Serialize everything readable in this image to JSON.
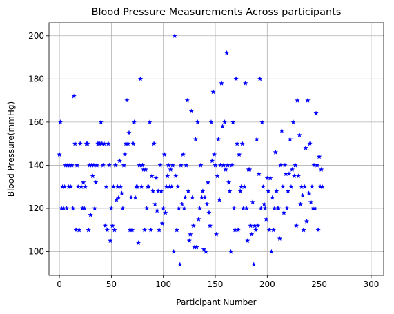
{
  "chart_data": {
    "type": "scatter",
    "title": "Blood Pressure Measurements Across participants",
    "xlabel": "Participant Number",
    "ylabel": "Blood  Pressure(mmHg)",
    "xlim": [
      -10,
      312
    ],
    "ylim": [
      89,
      206
    ],
    "xticks": [
      0,
      50,
      100,
      150,
      200,
      250,
      300
    ],
    "yticks": [
      100,
      120,
      140,
      160,
      180,
      200
    ],
    "grid": true,
    "marker": "star",
    "color": "#0000ff",
    "points": [
      [
        0,
        145
      ],
      [
        1,
        160
      ],
      [
        2,
        120
      ],
      [
        3,
        130
      ],
      [
        4,
        120
      ],
      [
        5,
        130
      ],
      [
        6,
        140
      ],
      [
        7,
        120
      ],
      [
        8,
        140
      ],
      [
        9,
        130
      ],
      [
        10,
        140
      ],
      [
        11,
        130
      ],
      [
        12,
        140
      ],
      [
        13,
        120
      ],
      [
        14,
        172
      ],
      [
        15,
        150
      ],
      [
        16,
        110
      ],
      [
        17,
        140
      ],
      [
        18,
        130
      ],
      [
        19,
        110
      ],
      [
        20,
        150
      ],
      [
        21,
        130
      ],
      [
        22,
        120
      ],
      [
        23,
        132
      ],
      [
        24,
        120
      ],
      [
        25,
        130
      ],
      [
        26,
        150
      ],
      [
        27,
        150
      ],
      [
        28,
        110
      ],
      [
        29,
        140
      ],
      [
        30,
        117
      ],
      [
        31,
        140
      ],
      [
        32,
        135
      ],
      [
        33,
        140
      ],
      [
        34,
        120
      ],
      [
        35,
        132
      ],
      [
        36,
        140
      ],
      [
        37,
        150
      ],
      [
        38,
        150
      ],
      [
        39,
        150
      ],
      [
        40,
        160
      ],
      [
        41,
        150
      ],
      [
        42,
        140
      ],
      [
        43,
        150
      ],
      [
        44,
        112
      ],
      [
        45,
        130
      ],
      [
        46,
        110
      ],
      [
        47,
        150
      ],
      [
        48,
        140
      ],
      [
        49,
        105
      ],
      [
        50,
        120
      ],
      [
        51,
        112
      ],
      [
        52,
        130
      ],
      [
        53,
        110
      ],
      [
        54,
        140
      ],
      [
        55,
        124
      ],
      [
        56,
        130
      ],
      [
        57,
        125
      ],
      [
        58,
        142
      ],
      [
        59,
        130
      ],
      [
        60,
        127
      ],
      [
        61,
        120
      ],
      [
        62,
        140
      ],
      [
        63,
        145
      ],
      [
        64,
        150
      ],
      [
        65,
        170
      ],
      [
        66,
        150
      ],
      [
        67,
        155
      ],
      [
        68,
        110
      ],
      [
        69,
        125
      ],
      [
        70,
        110
      ],
      [
        71,
        150
      ],
      [
        72,
        160
      ],
      [
        73,
        125
      ],
      [
        74,
        130
      ],
      [
        75,
        130
      ],
      [
        76,
        104
      ],
      [
        77,
        140
      ],
      [
        78,
        180
      ],
      [
        79,
        130
      ],
      [
        80,
        140
      ],
      [
        81,
        138
      ],
      [
        82,
        110
      ],
      [
        83,
        138
      ],
      [
        84,
        120
      ],
      [
        85,
        130
      ],
      [
        86,
        130
      ],
      [
        87,
        160
      ],
      [
        88,
        110
      ],
      [
        89,
        135
      ],
      [
        90,
        128
      ],
      [
        91,
        150
      ],
      [
        92,
        122
      ],
      [
        93,
        134
      ],
      [
        94,
        119
      ],
      [
        95,
        128
      ],
      [
        96,
        110
      ],
      [
        97,
        140
      ],
      [
        98,
        128
      ],
      [
        99,
        113
      ],
      [
        100,
        120
      ],
      [
        101,
        145
      ],
      [
        102,
        118
      ],
      [
        103,
        130
      ],
      [
        104,
        135
      ],
      [
        105,
        140
      ],
      [
        106,
        130
      ],
      [
        107,
        138
      ],
      [
        108,
        130
      ],
      [
        109,
        140
      ],
      [
        110,
        100
      ],
      [
        111,
        200
      ],
      [
        112,
        135
      ],
      [
        113,
        110
      ],
      [
        114,
        130
      ],
      [
        115,
        120
      ],
      [
        116,
        94
      ],
      [
        117,
        140
      ],
      [
        118,
        122
      ],
      [
        119,
        145
      ],
      [
        120,
        120
      ],
      [
        121,
        125
      ],
      [
        122,
        140
      ],
      [
        123,
        170
      ],
      [
        124,
        128
      ],
      [
        125,
        105
      ],
      [
        126,
        108
      ],
      [
        127,
        165
      ],
      [
        128,
        125
      ],
      [
        129,
        112
      ],
      [
        130,
        102
      ],
      [
        131,
        152
      ],
      [
        132,
        102
      ],
      [
        133,
        160
      ],
      [
        134,
        115
      ],
      [
        135,
        120
      ],
      [
        136,
        140
      ],
      [
        137,
        125
      ],
      [
        138,
        128
      ],
      [
        139,
        101
      ],
      [
        140,
        125
      ],
      [
        141,
        100
      ],
      [
        142,
        122
      ],
      [
        143,
        132
      ],
      [
        144,
        118
      ],
      [
        145,
        112
      ],
      [
        146,
        160
      ],
      [
        147,
        142
      ],
      [
        148,
        174
      ],
      [
        149,
        145
      ],
      [
        150,
        140
      ],
      [
        151,
        108
      ],
      [
        152,
        135
      ],
      [
        153,
        152
      ],
      [
        154,
        124
      ],
      [
        155,
        140
      ],
      [
        156,
        178
      ],
      [
        157,
        158
      ],
      [
        158,
        140
      ],
      [
        159,
        160
      ],
      [
        160,
        138
      ],
      [
        161,
        192
      ],
      [
        162,
        140
      ],
      [
        163,
        132
      ],
      [
        164,
        128
      ],
      [
        165,
        100
      ],
      [
        166,
        140
      ],
      [
        167,
        160
      ],
      [
        168,
        120
      ],
      [
        169,
        110
      ],
      [
        170,
        180
      ],
      [
        171,
        150
      ],
      [
        172,
        110
      ],
      [
        173,
        145
      ],
      [
        174,
        128
      ],
      [
        175,
        130
      ],
      [
        176,
        150
      ],
      [
        177,
        120
      ],
      [
        178,
        130
      ],
      [
        179,
        178
      ],
      [
        180,
        120
      ],
      [
        181,
        105
      ],
      [
        182,
        138
      ],
      [
        183,
        138
      ],
      [
        184,
        112
      ],
      [
        185,
        108
      ],
      [
        186,
        123
      ],
      [
        187,
        94
      ],
      [
        188,
        112
      ],
      [
        189,
        110
      ],
      [
        190,
        152
      ],
      [
        191,
        112
      ],
      [
        192,
        136
      ],
      [
        193,
        180
      ],
      [
        194,
        120
      ],
      [
        195,
        160
      ],
      [
        196,
        130
      ],
      [
        197,
        122
      ],
      [
        198,
        120
      ],
      [
        199,
        115
      ],
      [
        200,
        134
      ],
      [
        201,
        128
      ],
      [
        202,
        110
      ],
      [
        203,
        134
      ],
      [
        204,
        100
      ],
      [
        205,
        125
      ],
      [
        206,
        110
      ],
      [
        207,
        120
      ],
      [
        208,
        146
      ],
      [
        209,
        128
      ],
      [
        210,
        120
      ],
      [
        211,
        120
      ],
      [
        212,
        106
      ],
      [
        213,
        140
      ],
      [
        214,
        156
      ],
      [
        215,
        130
      ],
      [
        216,
        118
      ],
      [
        217,
        140
      ],
      [
        218,
        136
      ],
      [
        219,
        120
      ],
      [
        220,
        128
      ],
      [
        221,
        136
      ],
      [
        222,
        152
      ],
      [
        223,
        130
      ],
      [
        224,
        138
      ],
      [
        225,
        160
      ],
      [
        226,
        135
      ],
      [
        227,
        140
      ],
      [
        228,
        112
      ],
      [
        229,
        170
      ],
      [
        230,
        135
      ],
      [
        231,
        154
      ],
      [
        232,
        122
      ],
      [
        233,
        130
      ],
      [
        234,
        126
      ],
      [
        235,
        110
      ],
      [
        236,
        130
      ],
      [
        237,
        148
      ],
      [
        238,
        114
      ],
      [
        239,
        170
      ],
      [
        240,
        127
      ],
      [
        241,
        150
      ],
      [
        242,
        123
      ],
      [
        243,
        130
      ],
      [
        244,
        120
      ],
      [
        245,
        140
      ],
      [
        246,
        120
      ],
      [
        247,
        164
      ],
      [
        248,
        140
      ],
      [
        249,
        110
      ],
      [
        250,
        144
      ],
      [
        251,
        130
      ],
      [
        252,
        138
      ],
      [
        253,
        130
      ]
    ]
  }
}
